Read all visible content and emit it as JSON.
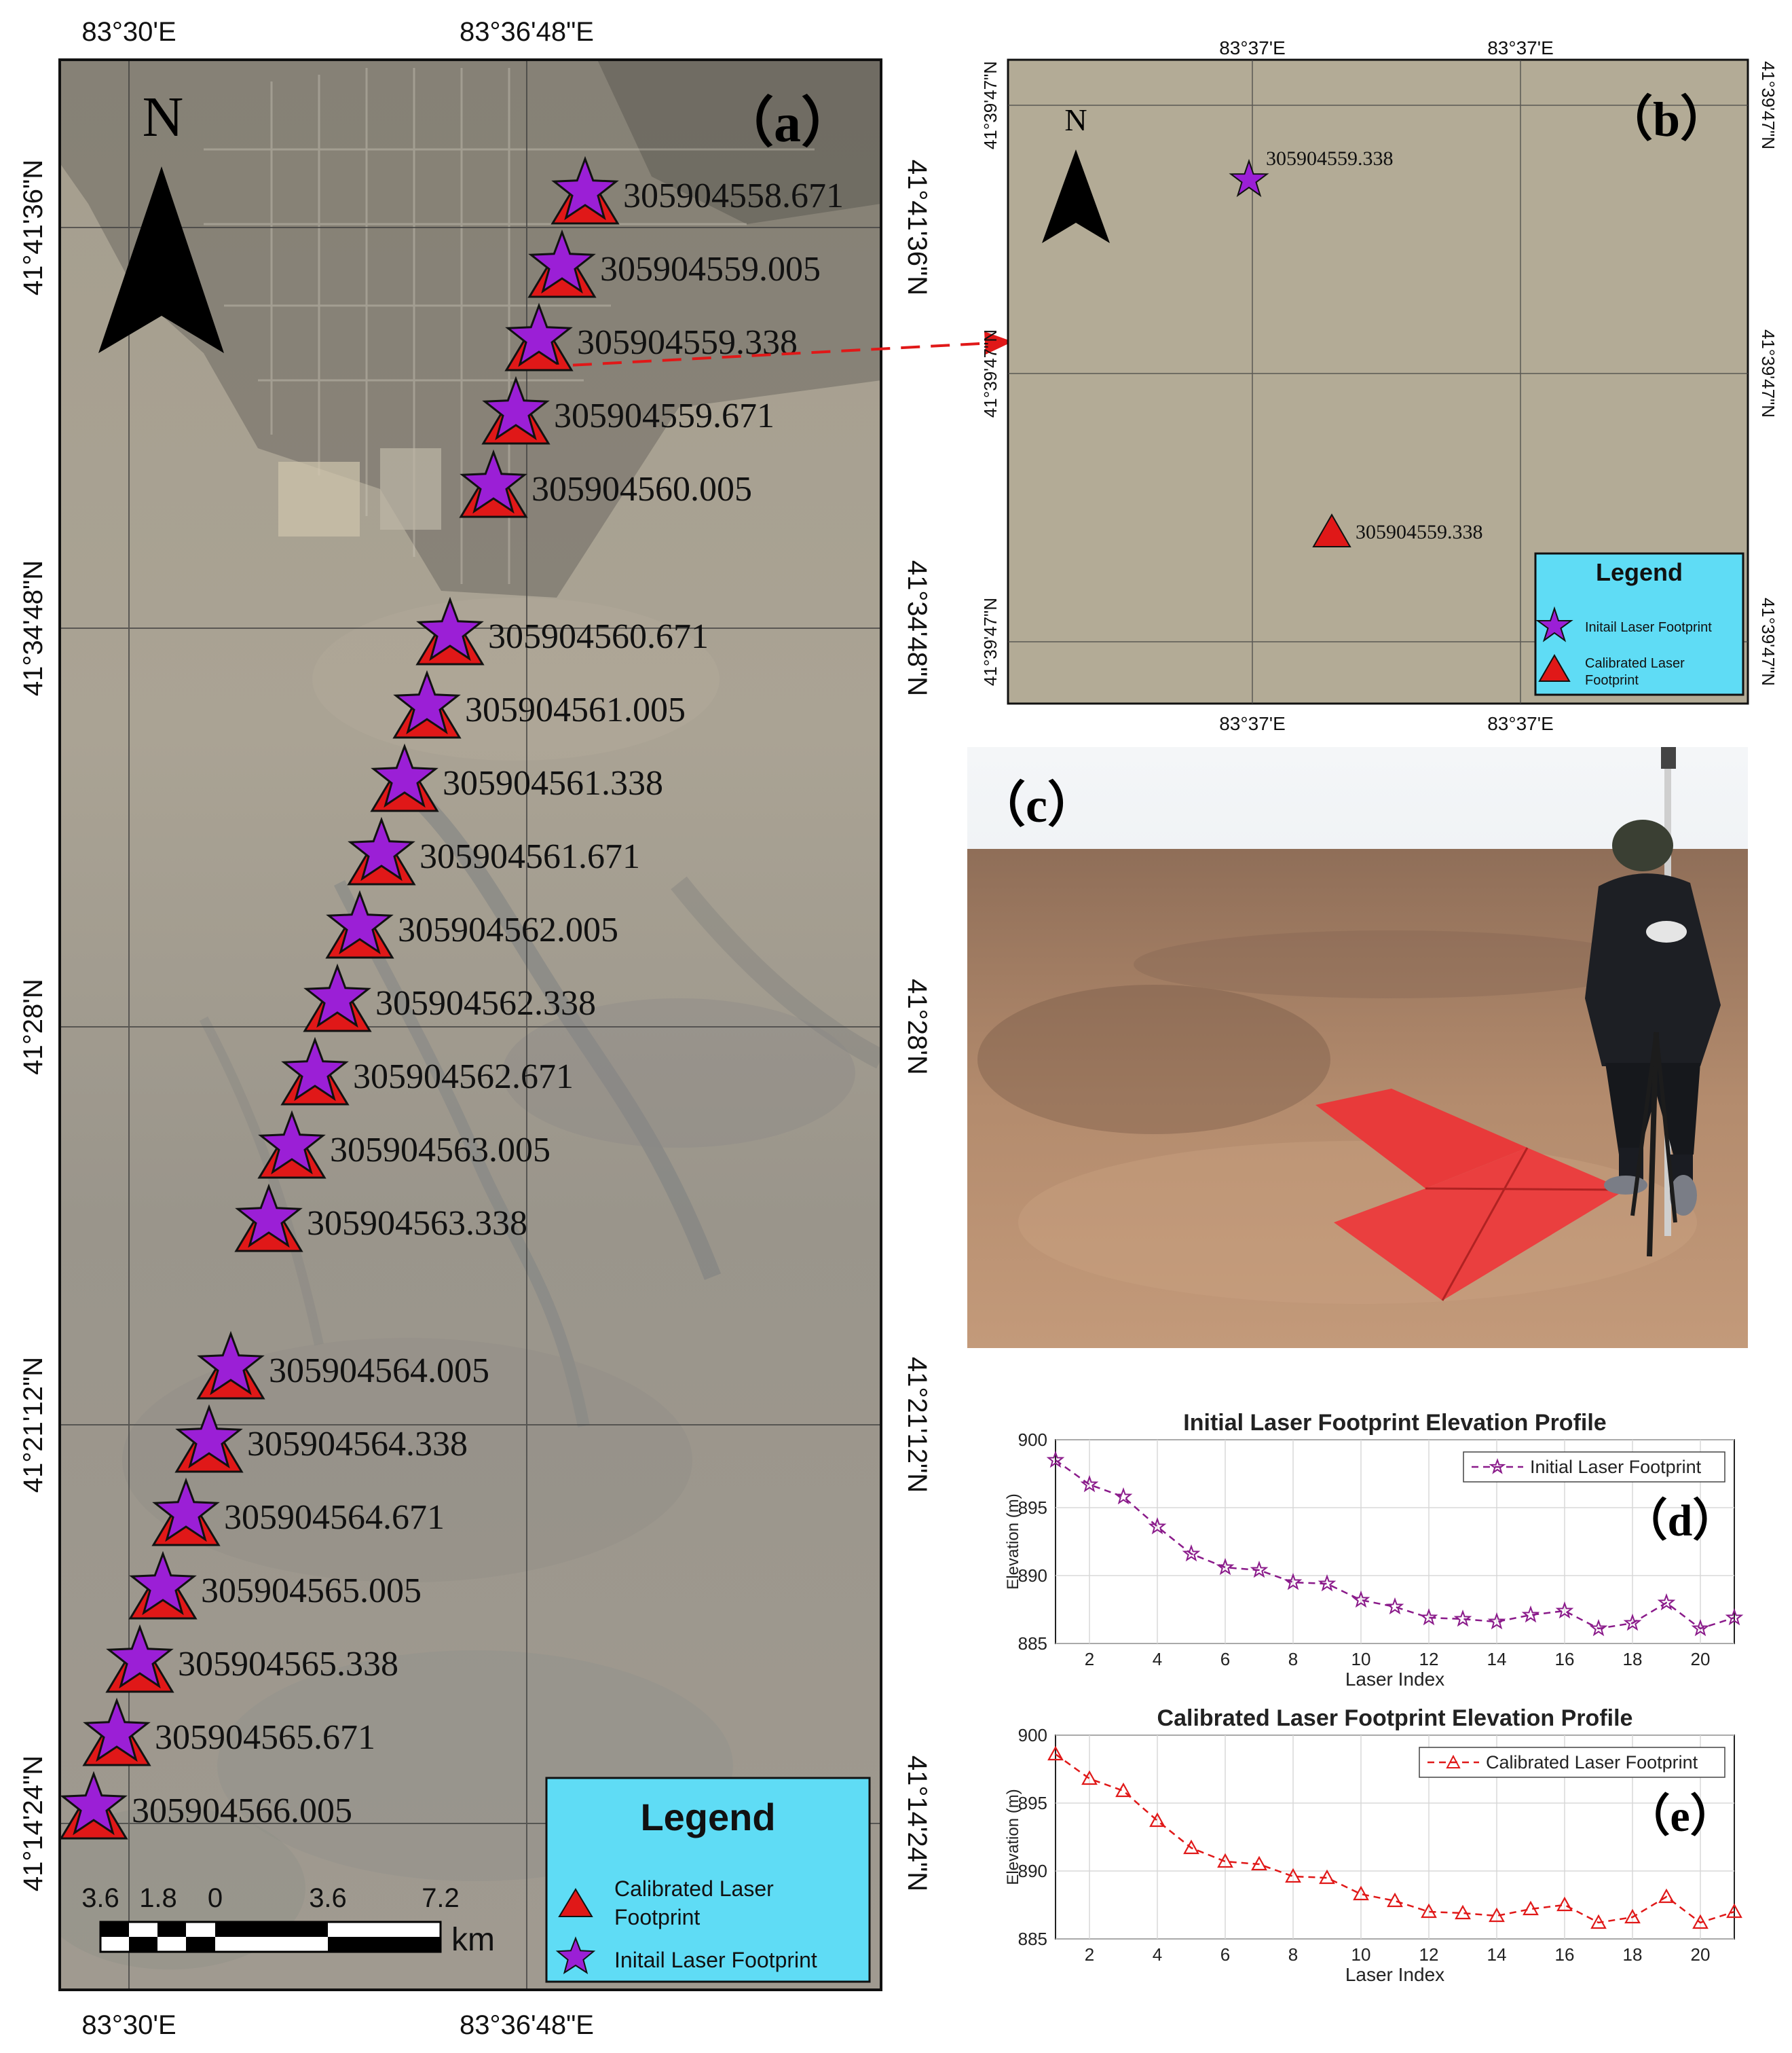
{
  "panel_a": {
    "label": "（a）",
    "north_label": "N",
    "top_ticks": [
      "83°30'E",
      "83°36'48\"E"
    ],
    "bottom_ticks": [
      "83°30'E",
      "83°36'48\"E"
    ],
    "lat_ticks": [
      "41°41'36\"N",
      "41°34'48\"N",
      "41°28'N",
      "41°21'12\"N",
      "41°14'24\"N"
    ],
    "footprints": [
      "305904558.671",
      "305904559.005",
      "305904559.338",
      "305904559.671",
      "305904560.005",
      "305904560.671",
      "305904561.005",
      "305904561.338",
      "305904561.671",
      "305904562.005",
      "305904562.338",
      "305904562.671",
      "305904563.005",
      "305904563.338",
      "305904564.005",
      "305904564.338",
      "305904564.671",
      "305904565.005",
      "305904565.338",
      "305904565.671",
      "305904566.005"
    ],
    "legend": {
      "title": "Legend",
      "calibrated_line1": "Calibrated Laser",
      "calibrated_line2": "Footprint",
      "initial": "Initail Laser Footprint"
    },
    "scalebar": {
      "labels": [
        "3.6",
        "1.8",
        "0",
        "3.6",
        "7.2"
      ],
      "unit": "km"
    },
    "colors": {
      "star": "#9b1fd6",
      "triangle": "#e01818",
      "legend_bg": "#5fdcf5"
    }
  },
  "panel_b": {
    "label": "（b）",
    "north_label": "N",
    "top_ticks": [
      "83°37'E",
      "83°37'E"
    ],
    "bottom_ticks": [
      "83°37'E",
      "83°37'E"
    ],
    "left_ticks": [
      "41°39'47\"N",
      "41°39'47\"N",
      "41°39'47\"N"
    ],
    "right_ticks": [
      "41°39'47\"N",
      "41°39'47\"N",
      "41°39'47\"N"
    ],
    "star_label": "305904559.338",
    "triangle_label": "305904559.338",
    "legend": {
      "title": "Legend",
      "initial": "Initail Laser Footprint",
      "calibrated_line1": "Calibrated Laser",
      "calibrated_line2": "Footprint"
    }
  },
  "panel_c": {
    "label": "（c）"
  },
  "chart_data": [
    {
      "type": "line",
      "panel_label": "（d）",
      "title": "Initial Laser Footprint Elevation Profile",
      "xlabel": "Laser Index",
      "ylabel": "Elevation (m)",
      "x": [
        1,
        2,
        3,
        4,
        5,
        6,
        7,
        8,
        9,
        10,
        11,
        12,
        13,
        14,
        15,
        16,
        17,
        18,
        19,
        20,
        21
      ],
      "series": [
        {
          "name": "Initial Laser Footprint",
          "values": [
            898.5,
            896.7,
            895.8,
            893.6,
            891.6,
            890.6,
            890.4,
            889.5,
            889.4,
            888.2,
            887.7,
            886.9,
            886.8,
            886.6,
            887.1,
            887.4,
            886.1,
            886.5,
            888.0,
            886.1,
            886.9
          ]
        }
      ],
      "xlim": [
        1,
        21
      ],
      "ylim": [
        885,
        900
      ],
      "xticks": [
        2,
        4,
        6,
        8,
        10,
        12,
        14,
        16,
        18,
        20
      ],
      "yticks": [
        885,
        890,
        895,
        900
      ],
      "grid": true,
      "legend": "top-right",
      "color": "#8a1a8a",
      "marker": "star"
    },
    {
      "type": "line",
      "panel_label": "（e）",
      "title": "Calibrated Laser Footprint Elevation Profile",
      "xlabel": "Laser Index",
      "ylabel": "Elevation (m)",
      "x": [
        1,
        2,
        3,
        4,
        5,
        6,
        7,
        8,
        9,
        10,
        11,
        12,
        13,
        14,
        15,
        16,
        17,
        18,
        19,
        20,
        21
      ],
      "series": [
        {
          "name": "Calibrated Laser Footprint",
          "values": [
            898.6,
            896.8,
            895.9,
            893.7,
            891.7,
            890.7,
            890.5,
            889.6,
            889.5,
            888.3,
            887.8,
            887.0,
            886.9,
            886.7,
            887.2,
            887.5,
            886.2,
            886.6,
            888.1,
            886.2,
            887.0
          ]
        }
      ],
      "xlim": [
        1,
        21
      ],
      "ylim": [
        885,
        900
      ],
      "xticks": [
        2,
        4,
        6,
        8,
        10,
        12,
        14,
        16,
        18,
        20
      ],
      "yticks": [
        885,
        890,
        895,
        900
      ],
      "grid": true,
      "legend": "top-right",
      "color": "#e01818",
      "marker": "triangle"
    }
  ]
}
